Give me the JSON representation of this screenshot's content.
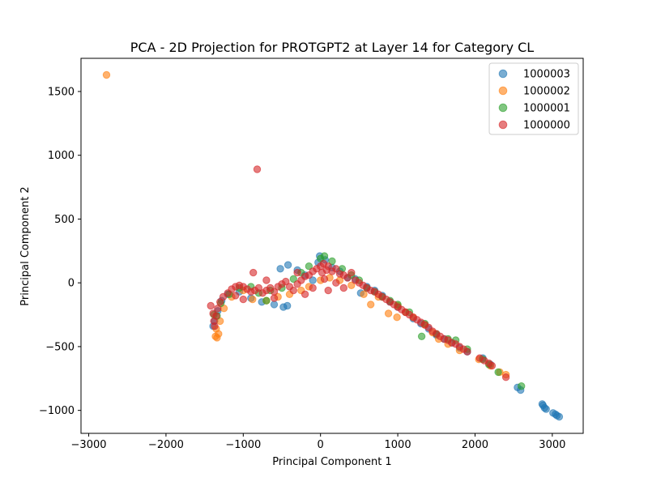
{
  "chart_data": {
    "type": "scatter",
    "title": "PCA - 2D Projection for PROTGPT2 at Layer 14 for Category CL",
    "xlabel": "Principal Component 1",
    "ylabel": "Principal Component 2",
    "xlim": [
      -3100,
      3400
    ],
    "ylim": [
      -1180,
      1760
    ],
    "xticks": [
      -3000,
      -2000,
      -1000,
      0,
      1000,
      2000,
      3000
    ],
    "yticks": [
      -1000,
      -500,
      0,
      500,
      1000,
      1500
    ],
    "grid": false,
    "legend_position": "top-right",
    "series": [
      {
        "name": "1000003",
        "color": "#1f77b4",
        "points": [
          [
            -1390,
            -340
          ],
          [
            -1370,
            -300
          ],
          [
            -1330,
            -220
          ],
          [
            -1280,
            -140
          ],
          [
            -1200,
            -90
          ],
          [
            -1050,
            -70
          ],
          [
            -900,
            -120
          ],
          [
            -760,
            -150
          ],
          [
            -600,
            -170
          ],
          [
            -480,
            -190
          ],
          [
            -430,
            -180
          ],
          [
            -520,
            110
          ],
          [
            -420,
            140
          ],
          [
            -300,
            100
          ],
          [
            -200,
            60
          ],
          [
            -100,
            20
          ],
          [
            -30,
            160
          ],
          [
            -10,
            210
          ],
          [
            60,
            180
          ],
          [
            150,
            120
          ],
          [
            250,
            90
          ],
          [
            350,
            40
          ],
          [
            450,
            30
          ],
          [
            520,
            -80
          ],
          [
            600,
            -30
          ],
          [
            700,
            -60
          ],
          [
            800,
            -100
          ],
          [
            900,
            -150
          ],
          [
            1000,
            -190
          ],
          [
            1100,
            -230
          ],
          [
            1200,
            -280
          ],
          [
            1300,
            -320
          ],
          [
            1400,
            -360
          ],
          [
            1500,
            -410
          ],
          [
            1600,
            -440
          ],
          [
            1700,
            -470
          ],
          [
            1800,
            -510
          ],
          [
            1900,
            -540
          ],
          [
            2100,
            -590
          ],
          [
            2200,
            -640
          ],
          [
            2550,
            -820
          ],
          [
            2590,
            -840
          ],
          [
            2870,
            -950
          ],
          [
            2900,
            -980
          ],
          [
            2920,
            -990
          ],
          [
            3040,
            -1030
          ],
          [
            3060,
            -1040
          ],
          [
            3090,
            -1050
          ],
          [
            3010,
            -1020
          ],
          [
            2880,
            -960
          ]
        ]
      },
      {
        "name": "1000002",
        "color": "#ff7f0e",
        "points": [
          [
            -2770,
            1630
          ],
          [
            -1360,
            -420
          ],
          [
            -1340,
            -430
          ],
          [
            -1320,
            -400
          ],
          [
            -1350,
            -360
          ],
          [
            -1300,
            -300
          ],
          [
            -1250,
            -200
          ],
          [
            -1150,
            -110
          ],
          [
            -1000,
            -60
          ],
          [
            -880,
            -130
          ],
          [
            -700,
            -140
          ],
          [
            -550,
            -110
          ],
          [
            -400,
            -90
          ],
          [
            -250,
            -60
          ],
          [
            -150,
            -30
          ],
          [
            0,
            20
          ],
          [
            120,
            40
          ],
          [
            250,
            20
          ],
          [
            400,
            -20
          ],
          [
            560,
            -90
          ],
          [
            650,
            -170
          ],
          [
            750,
            -110
          ],
          [
            880,
            -240
          ],
          [
            990,
            -270
          ],
          [
            1100,
            -230
          ],
          [
            1200,
            -270
          ],
          [
            1350,
            -330
          ],
          [
            1450,
            -390
          ],
          [
            1530,
            -440
          ],
          [
            1650,
            -480
          ],
          [
            1800,
            -530
          ],
          [
            2050,
            -600
          ],
          [
            2200,
            -650
          ],
          [
            2320,
            -700
          ],
          [
            2400,
            -720
          ],
          [
            1000,
            -180
          ]
        ]
      },
      {
        "name": "1000001",
        "color": "#2ca02c",
        "points": [
          [
            -1380,
            -250
          ],
          [
            -1340,
            -260
          ],
          [
            -1290,
            -160
          ],
          [
            -1180,
            -90
          ],
          [
            -1050,
            -40
          ],
          [
            -900,
            -30
          ],
          [
            -800,
            -80
          ],
          [
            -650,
            -60
          ],
          [
            -500,
            -40
          ],
          [
            -350,
            30
          ],
          [
            -250,
            80
          ],
          [
            -150,
            130
          ],
          [
            0,
            190
          ],
          [
            50,
            210
          ],
          [
            150,
            170
          ],
          [
            280,
            110
          ],
          [
            400,
            60
          ],
          [
            500,
            20
          ],
          [
            600,
            -40
          ],
          [
            700,
            -70
          ],
          [
            800,
            -110
          ],
          [
            900,
            -140
          ],
          [
            1000,
            -170
          ],
          [
            1150,
            -230
          ],
          [
            1310,
            -420
          ],
          [
            1350,
            -320
          ],
          [
            1500,
            -400
          ],
          [
            1650,
            -440
          ],
          [
            1750,
            -450
          ],
          [
            1900,
            -520
          ],
          [
            2100,
            -600
          ],
          [
            2180,
            -640
          ],
          [
            2300,
            -700
          ],
          [
            2600,
            -810
          ],
          [
            -700,
            -140
          ]
        ]
      },
      {
        "name": "1000000",
        "color": "#d62728",
        "points": [
          [
            -820,
            890
          ],
          [
            -1420,
            -180
          ],
          [
            -1390,
            -240
          ],
          [
            -1380,
            -300
          ],
          [
            -1370,
            -340
          ],
          [
            -1350,
            -260
          ],
          [
            -1330,
            -200
          ],
          [
            -1300,
            -150
          ],
          [
            -1260,
            -110
          ],
          [
            -1200,
            -80
          ],
          [
            -1150,
            -50
          ],
          [
            -1100,
            -30
          ],
          [
            -1050,
            -20
          ],
          [
            -1000,
            -30
          ],
          [
            -950,
            -50
          ],
          [
            -900,
            -70
          ],
          [
            -850,
            -60
          ],
          [
            -870,
            80
          ],
          [
            -800,
            -40
          ],
          [
            -750,
            -80
          ],
          [
            -700,
            -60
          ],
          [
            -650,
            -40
          ],
          [
            -600,
            -70
          ],
          [
            -550,
            -30
          ],
          [
            -500,
            -10
          ],
          [
            -450,
            10
          ],
          [
            -400,
            -30
          ],
          [
            -350,
            -60
          ],
          [
            -300,
            -10
          ],
          [
            -250,
            20
          ],
          [
            -200,
            50
          ],
          [
            -150,
            60
          ],
          [
            -100,
            90
          ],
          [
            -50,
            110
          ],
          [
            0,
            130
          ],
          [
            20,
            80
          ],
          [
            40,
            150
          ],
          [
            80,
            100
          ],
          [
            100,
            130
          ],
          [
            150,
            90
          ],
          [
            200,
            110
          ],
          [
            250,
            70
          ],
          [
            300,
            60
          ],
          [
            350,
            40
          ],
          [
            400,
            80
          ],
          [
            450,
            20
          ],
          [
            500,
            0
          ],
          [
            550,
            -20
          ],
          [
            600,
            -40
          ],
          [
            650,
            -60
          ],
          [
            700,
            -70
          ],
          [
            750,
            -90
          ],
          [
            800,
            -110
          ],
          [
            850,
            -130
          ],
          [
            900,
            -150
          ],
          [
            950,
            -170
          ],
          [
            1000,
            -190
          ],
          [
            1050,
            -210
          ],
          [
            1100,
            -230
          ],
          [
            1150,
            -250
          ],
          [
            1200,
            -270
          ],
          [
            1250,
            -290
          ],
          [
            1300,
            -310
          ],
          [
            1350,
            -330
          ],
          [
            1400,
            -350
          ],
          [
            1450,
            -380
          ],
          [
            1500,
            -400
          ],
          [
            1550,
            -420
          ],
          [
            1600,
            -440
          ],
          [
            1650,
            -450
          ],
          [
            1700,
            -470
          ],
          [
            1750,
            -480
          ],
          [
            1800,
            -500
          ],
          [
            1850,
            -520
          ],
          [
            1900,
            -540
          ],
          [
            2060,
            -590
          ],
          [
            2120,
            -610
          ],
          [
            2180,
            -630
          ],
          [
            2220,
            -650
          ],
          [
            2400,
            -740
          ],
          [
            -1000,
            -130
          ],
          [
            -600,
            -120
          ],
          [
            -200,
            -90
          ],
          [
            100,
            -60
          ],
          [
            300,
            -40
          ],
          [
            -300,
            80
          ],
          [
            -100,
            -40
          ],
          [
            50,
            30
          ],
          [
            200,
            0
          ],
          [
            -700,
            20
          ],
          [
            -1100,
            -100
          ]
        ]
      }
    ]
  }
}
